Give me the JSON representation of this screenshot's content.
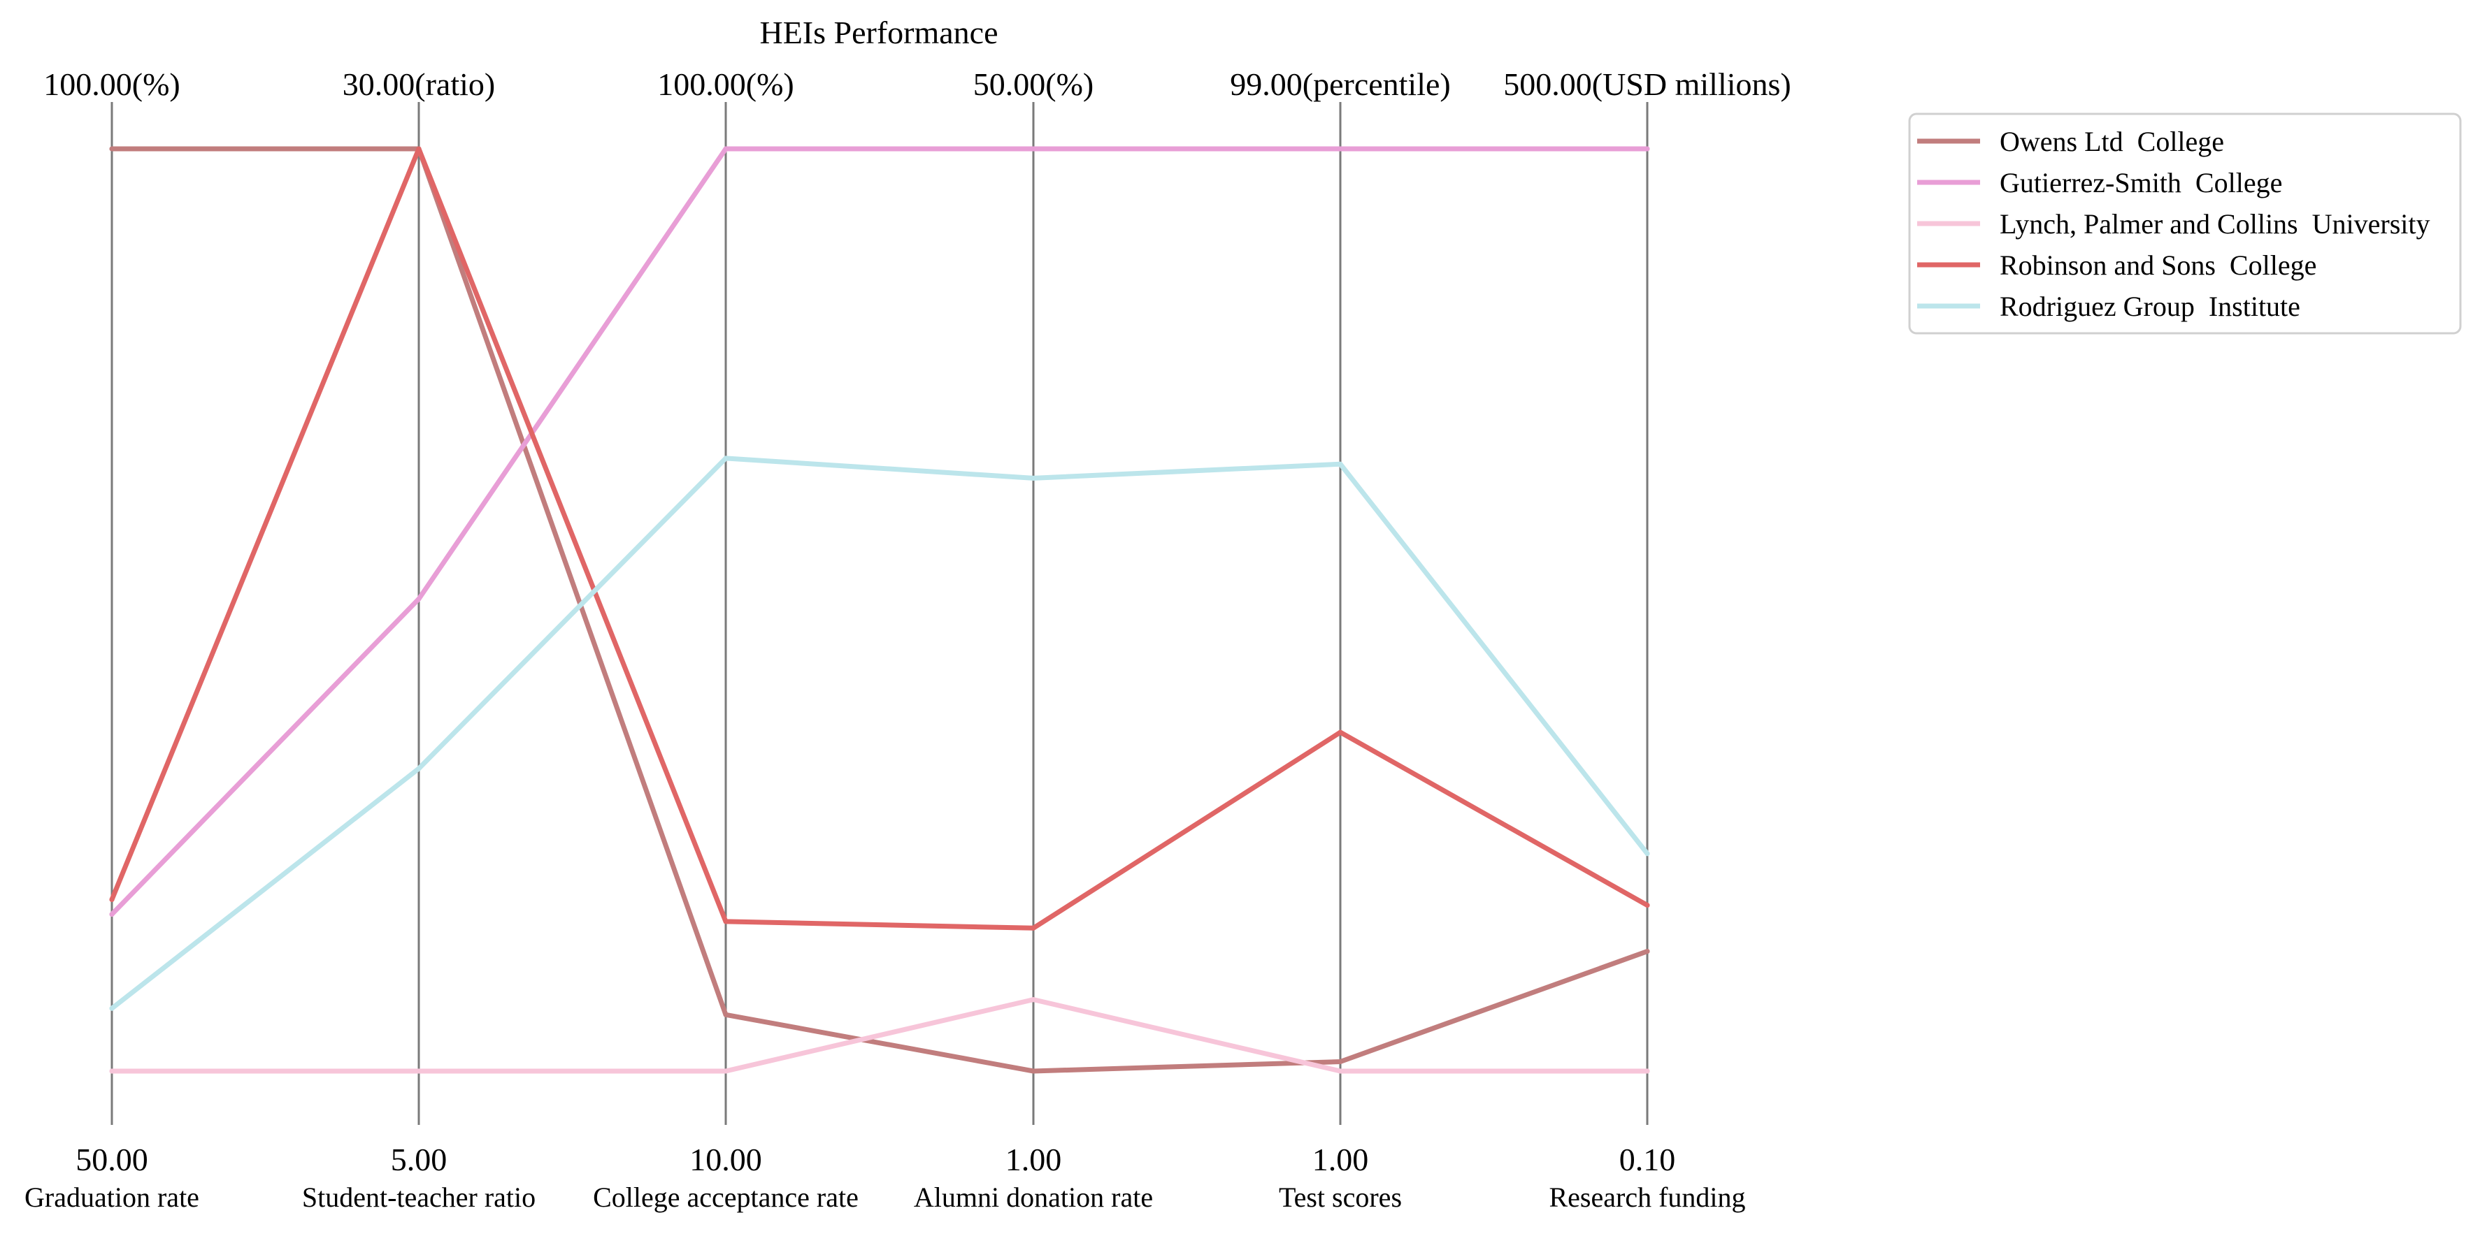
{
  "chart_data": {
    "type": "parallel-coordinates",
    "title": "HEIs Performance",
    "axes": [
      {
        "label": "Graduation rate",
        "min": 50.0,
        "max": 100.0,
        "min_label": "50.00",
        "max_label": "100.00(%)"
      },
      {
        "label": "Student-teacher ratio",
        "min": 5.0,
        "max": 30.0,
        "min_label": "5.00",
        "max_label": "30.00(ratio)"
      },
      {
        "label": "College acceptance rate",
        "min": 10.0,
        "max": 100.0,
        "min_label": "10.00",
        "max_label": "100.00(%)"
      },
      {
        "label": "Alumni donation rate",
        "min": 1.0,
        "max": 50.0,
        "min_label": "1.00",
        "max_label": "50.00(%)"
      },
      {
        "label": "Test scores",
        "min": 1.0,
        "max": 99.0,
        "min_label": "1.00",
        "max_label": "99.00(percentile)"
      },
      {
        "label": "Research funding",
        "min": 0.1,
        "max": 500.0,
        "min_label": "0.10",
        "max_label": "500.00(USD millions)"
      }
    ],
    "series": [
      {
        "name": "Owens Ltd  College",
        "color": "#c17d7d",
        "values": [
          100.0,
          30.0,
          15.5,
          1.0,
          2.0,
          65.0
        ]
      },
      {
        "name": "Gutierrez-Smith  College",
        "color": "#e89ed6",
        "values": [
          58.5,
          17.8,
          100.0,
          50.0,
          99.0,
          500.0
        ]
      },
      {
        "name": "Lynch, Palmer and Collins  University",
        "color": "#f7c5d9",
        "values": [
          50.0,
          5.0,
          10.0,
          4.8,
          1.0,
          0.1
        ]
      },
      {
        "name": "Robinson and Sons  College",
        "color": "#e06666",
        "values": [
          59.3,
          30.0,
          24.6,
          8.6,
          37.0,
          90.0
        ]
      },
      {
        "name": "Rodriguez Group  Institute",
        "color": "#bce5eb",
        "values": [
          53.4,
          13.2,
          69.8,
          32.5,
          65.5,
          118.0
        ]
      }
    ],
    "legend_position": "outside-right"
  }
}
